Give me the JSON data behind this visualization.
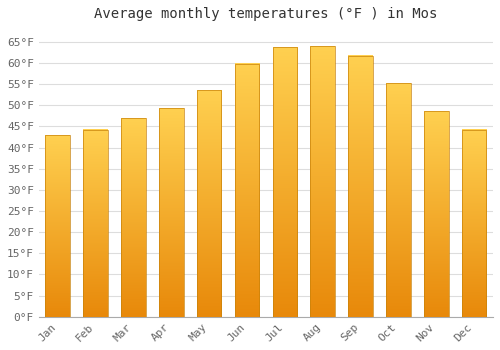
{
  "title": "Average monthly temperatures (°F ) in Mos",
  "months": [
    "Jan",
    "Feb",
    "Mar",
    "Apr",
    "May",
    "Jun",
    "Jul",
    "Aug",
    "Sep",
    "Oct",
    "Nov",
    "Dec"
  ],
  "values": [
    43.0,
    44.2,
    47.0,
    49.3,
    53.6,
    59.8,
    63.8,
    64.0,
    61.7,
    55.2,
    48.6,
    44.2
  ],
  "ylim": [
    0,
    68
  ],
  "yticks": [
    0,
    5,
    10,
    15,
    20,
    25,
    30,
    35,
    40,
    45,
    50,
    55,
    60,
    65
  ],
  "ytick_labels": [
    "0°F",
    "5°F",
    "10°F",
    "15°F",
    "20°F",
    "25°F",
    "30°F",
    "35°F",
    "40°F",
    "45°F",
    "50°F",
    "55°F",
    "60°F",
    "65°F"
  ],
  "bar_color_bottom": "#E8890A",
  "bar_color_mid": "#F5A623",
  "bar_color_top": "#FFD050",
  "background_color": "#ffffff",
  "grid_color": "#dddddd",
  "title_fontsize": 10,
  "tick_fontsize": 8,
  "font_family": "monospace"
}
